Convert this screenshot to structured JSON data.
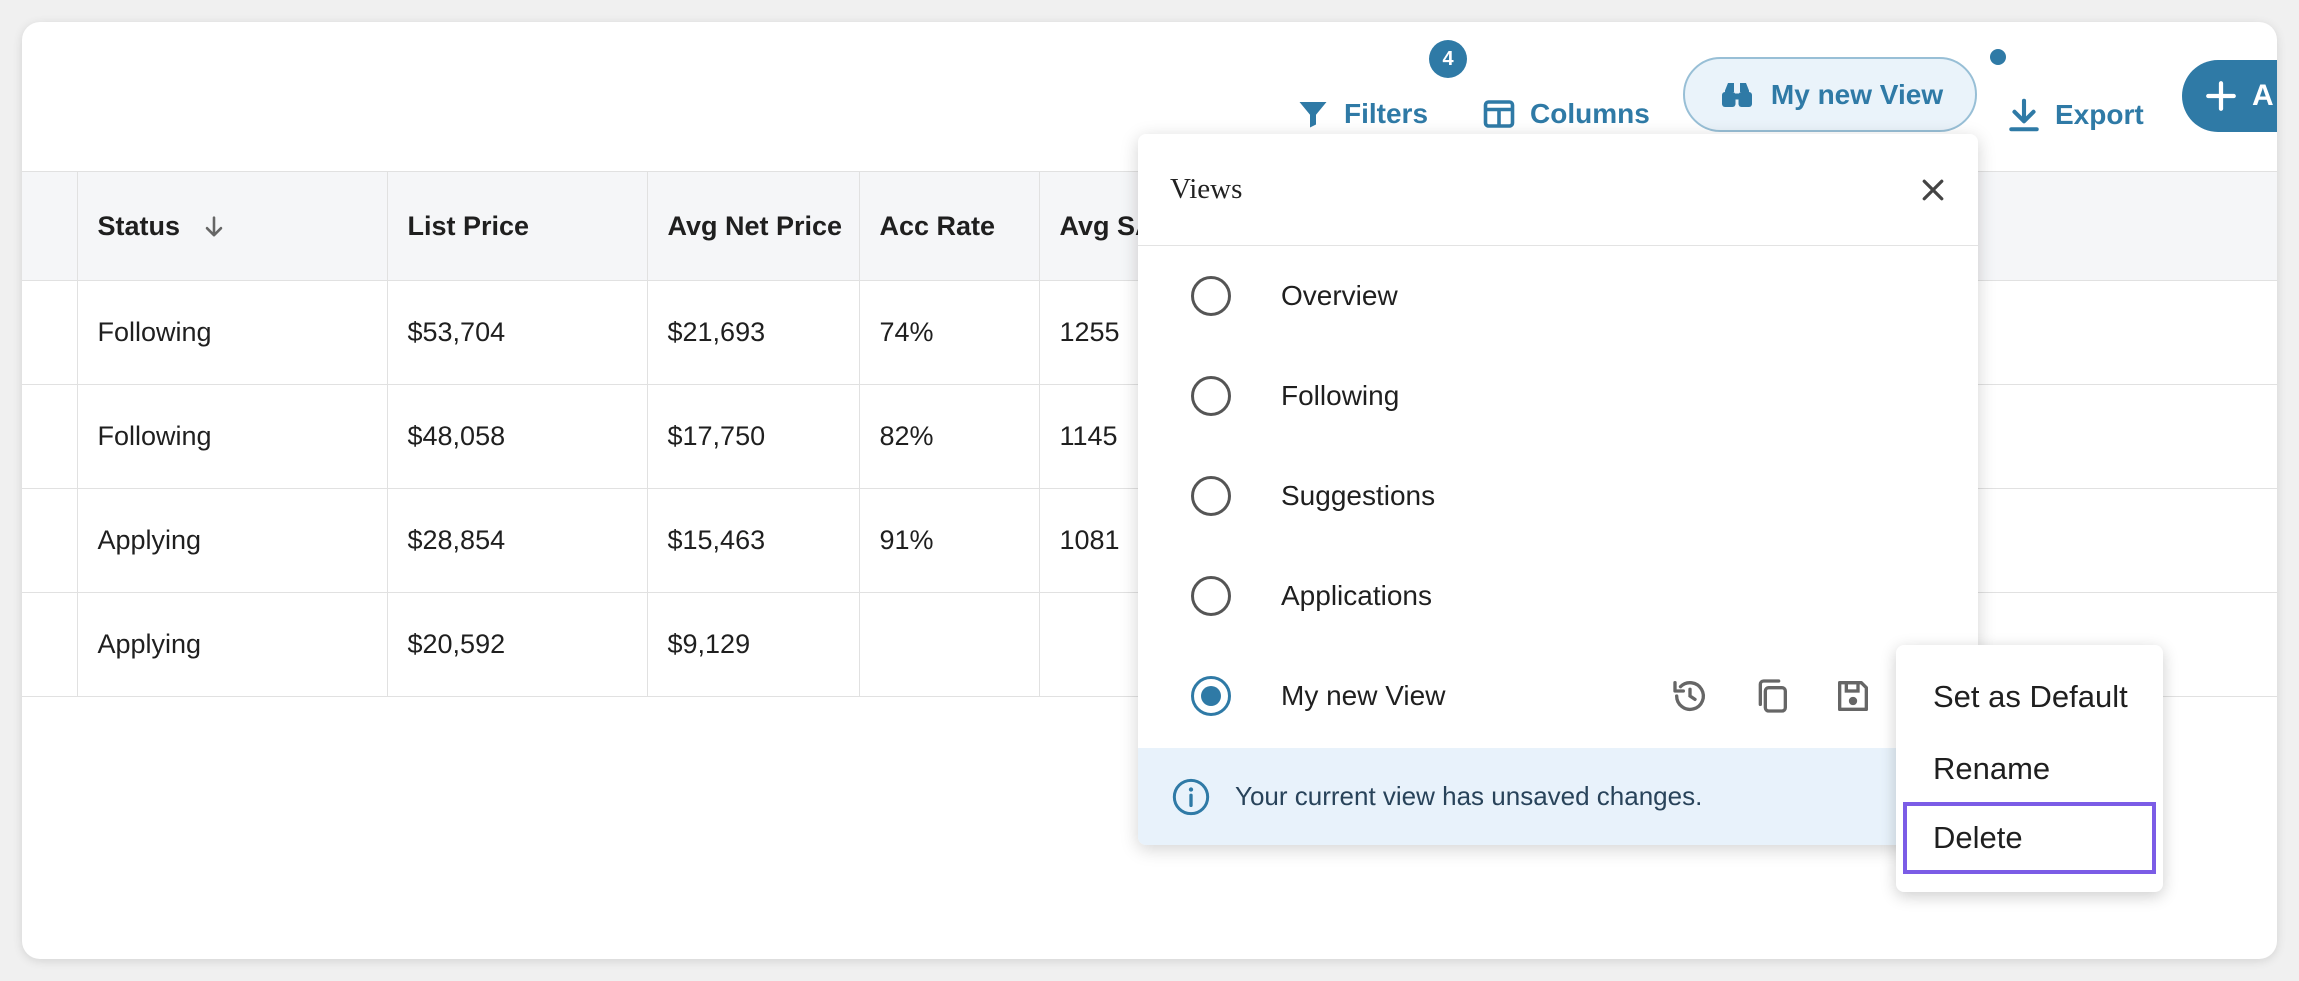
{
  "toolbar": {
    "filters_label": "Filters",
    "filters_count": "4",
    "columns_label": "Columns",
    "view_label": "My new View",
    "export_label": "Export",
    "add_label": "A"
  },
  "table": {
    "columns": [
      "Status",
      "List Price",
      "Avg Net Price",
      "Acc Rate",
      "Avg SA"
    ],
    "rows": [
      [
        "Following",
        "$53,704",
        "$21,693",
        "74%",
        "1255"
      ],
      [
        "Following",
        "$48,058",
        "$17,750",
        "82%",
        "1145"
      ],
      [
        "Applying",
        "$28,854",
        "$15,463",
        "91%",
        "1081"
      ],
      [
        "Applying",
        "$20,592",
        "$9,129",
        "",
        ""
      ]
    ]
  },
  "views_panel": {
    "title": "Views",
    "options": [
      {
        "label": "Overview",
        "selected": false
      },
      {
        "label": "Following",
        "selected": false
      },
      {
        "label": "Suggestions",
        "selected": false
      },
      {
        "label": "Applications",
        "selected": false
      },
      {
        "label": "My new View",
        "selected": true
      }
    ],
    "info_text": "Your current view has unsaved changes."
  },
  "context_menu": {
    "items": [
      "Set as Default",
      "Rename",
      "Delete"
    ],
    "highlighted": "Delete"
  },
  "colors": {
    "accent": "#2f7aa6",
    "highlight_border": "#7b5ce6",
    "info_bg": "#e8f2fb"
  }
}
